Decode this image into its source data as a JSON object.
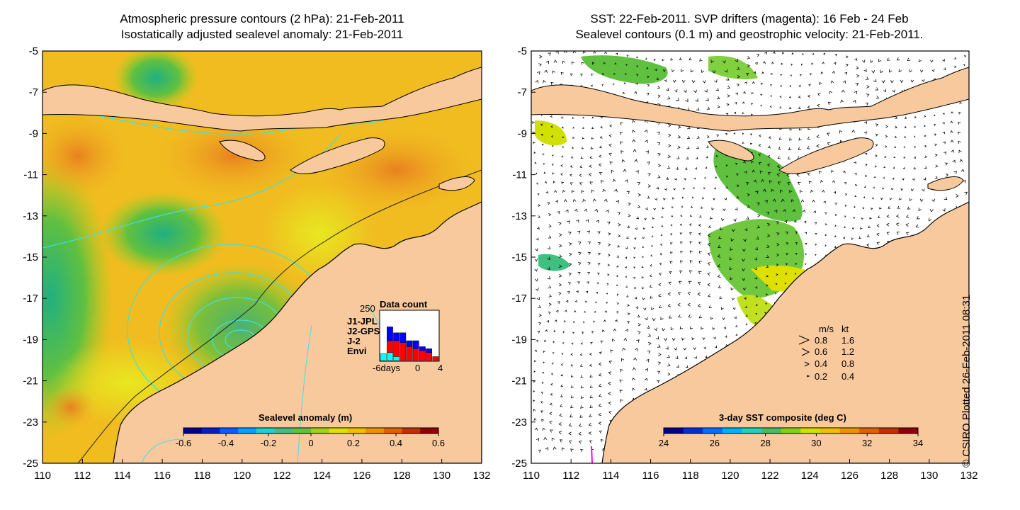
{
  "left_panel": {
    "title_line1": "Atmospheric pressure contours (2 hPa): 21-Feb-2011",
    "title_line2": "Isostatically adjusted sealevel anomaly: 21-Feb-2011",
    "colorbar": {
      "title": "Sealevel anomaly (m)",
      "ticks": [
        "-0.6",
        "-0.4",
        "-0.2",
        "0",
        "0.2",
        "0.4",
        "0.6"
      ],
      "colors": [
        "#00008f",
        "#0020c0",
        "#0060ff",
        "#00a0ff",
        "#20d0d0",
        "#40c080",
        "#60c040",
        "#a0d020",
        "#e0e000",
        "#f0c000",
        "#f09000",
        "#e06000",
        "#c03000",
        "#900000"
      ]
    },
    "data_count": {
      "title": "Data count",
      "y_max_label": "250",
      "x_labels": [
        "-6days",
        "0",
        "4"
      ],
      "legend": [
        {
          "label": "J1-JPL",
          "color": "#0000ff"
        },
        {
          "label": "J2-GPS",
          "color": "#ff00ff"
        },
        {
          "label": "J-2",
          "color": "#ff0000"
        },
        {
          "label": "Envi",
          "color": "#00ffff"
        }
      ],
      "bars": [
        {
          "envi": 35,
          "j2": 0,
          "jpl": 0
        },
        {
          "envi": 40,
          "j2": 60,
          "jpl": 70
        },
        {
          "envi": 20,
          "j2": 80,
          "jpl": 40
        },
        {
          "envi": 0,
          "j2": 90,
          "jpl": 50
        },
        {
          "envi": 0,
          "j2": 70,
          "jpl": 30
        },
        {
          "envi": 0,
          "j2": 60,
          "jpl": 40
        },
        {
          "envi": 0,
          "j2": 50,
          "jpl": 20
        },
        {
          "envi": 0,
          "j2": 40,
          "jpl": 20
        },
        {
          "envi": 0,
          "j2": 20,
          "jpl": 0
        }
      ]
    }
  },
  "right_panel": {
    "title_line1": "SST: 22-Feb-2011. SVP drifters (magenta): 16 Feb - 24 Feb",
    "title_line2": "Sealevel contours (0.1 m) and geostrophic velocity: 21-Feb-2011.",
    "colorbar": {
      "title": "3-day SST composite (deg C)",
      "ticks": [
        "24",
        "26",
        "28",
        "30",
        "32",
        "34"
      ],
      "colors": [
        "#00008f",
        "#0030d0",
        "#0070ff",
        "#00b0ff",
        "#20d0c0",
        "#40c060",
        "#80d020",
        "#d0e000",
        "#f0c000",
        "#f09000",
        "#e06000",
        "#c03000",
        "#900000"
      ]
    },
    "velocity_legend": {
      "header_ms": "m/s",
      "header_kt": "kt",
      "rows": [
        {
          "ms": "0.8",
          "kt": "1.6"
        },
        {
          "ms": "0.6",
          "kt": "1.2"
        },
        {
          "ms": "0.4",
          "kt": "0.8"
        },
        {
          "ms": "0.2",
          "kt": "0.4"
        }
      ]
    }
  },
  "axes": {
    "lat_ticks": [
      "-5",
      "-7",
      "-9",
      "-11",
      "-13",
      "-15",
      "-17",
      "-19",
      "-21",
      "-23",
      "-25"
    ],
    "lon_ticks": [
      "110",
      "112",
      "114",
      "116",
      "118",
      "120",
      "122",
      "124",
      "126",
      "128",
      "130",
      "132"
    ]
  },
  "credit": "© CSIRO Plotted 26-Feb-2011 08:31",
  "colors": {
    "land": "#f9c99e",
    "sea_anomaly_base": "#f0c020",
    "sea_green": "#80d040",
    "sea_orange": "#f0a020",
    "contour_cyan": "#40e0e0",
    "drifter": "#ff00ff"
  }
}
